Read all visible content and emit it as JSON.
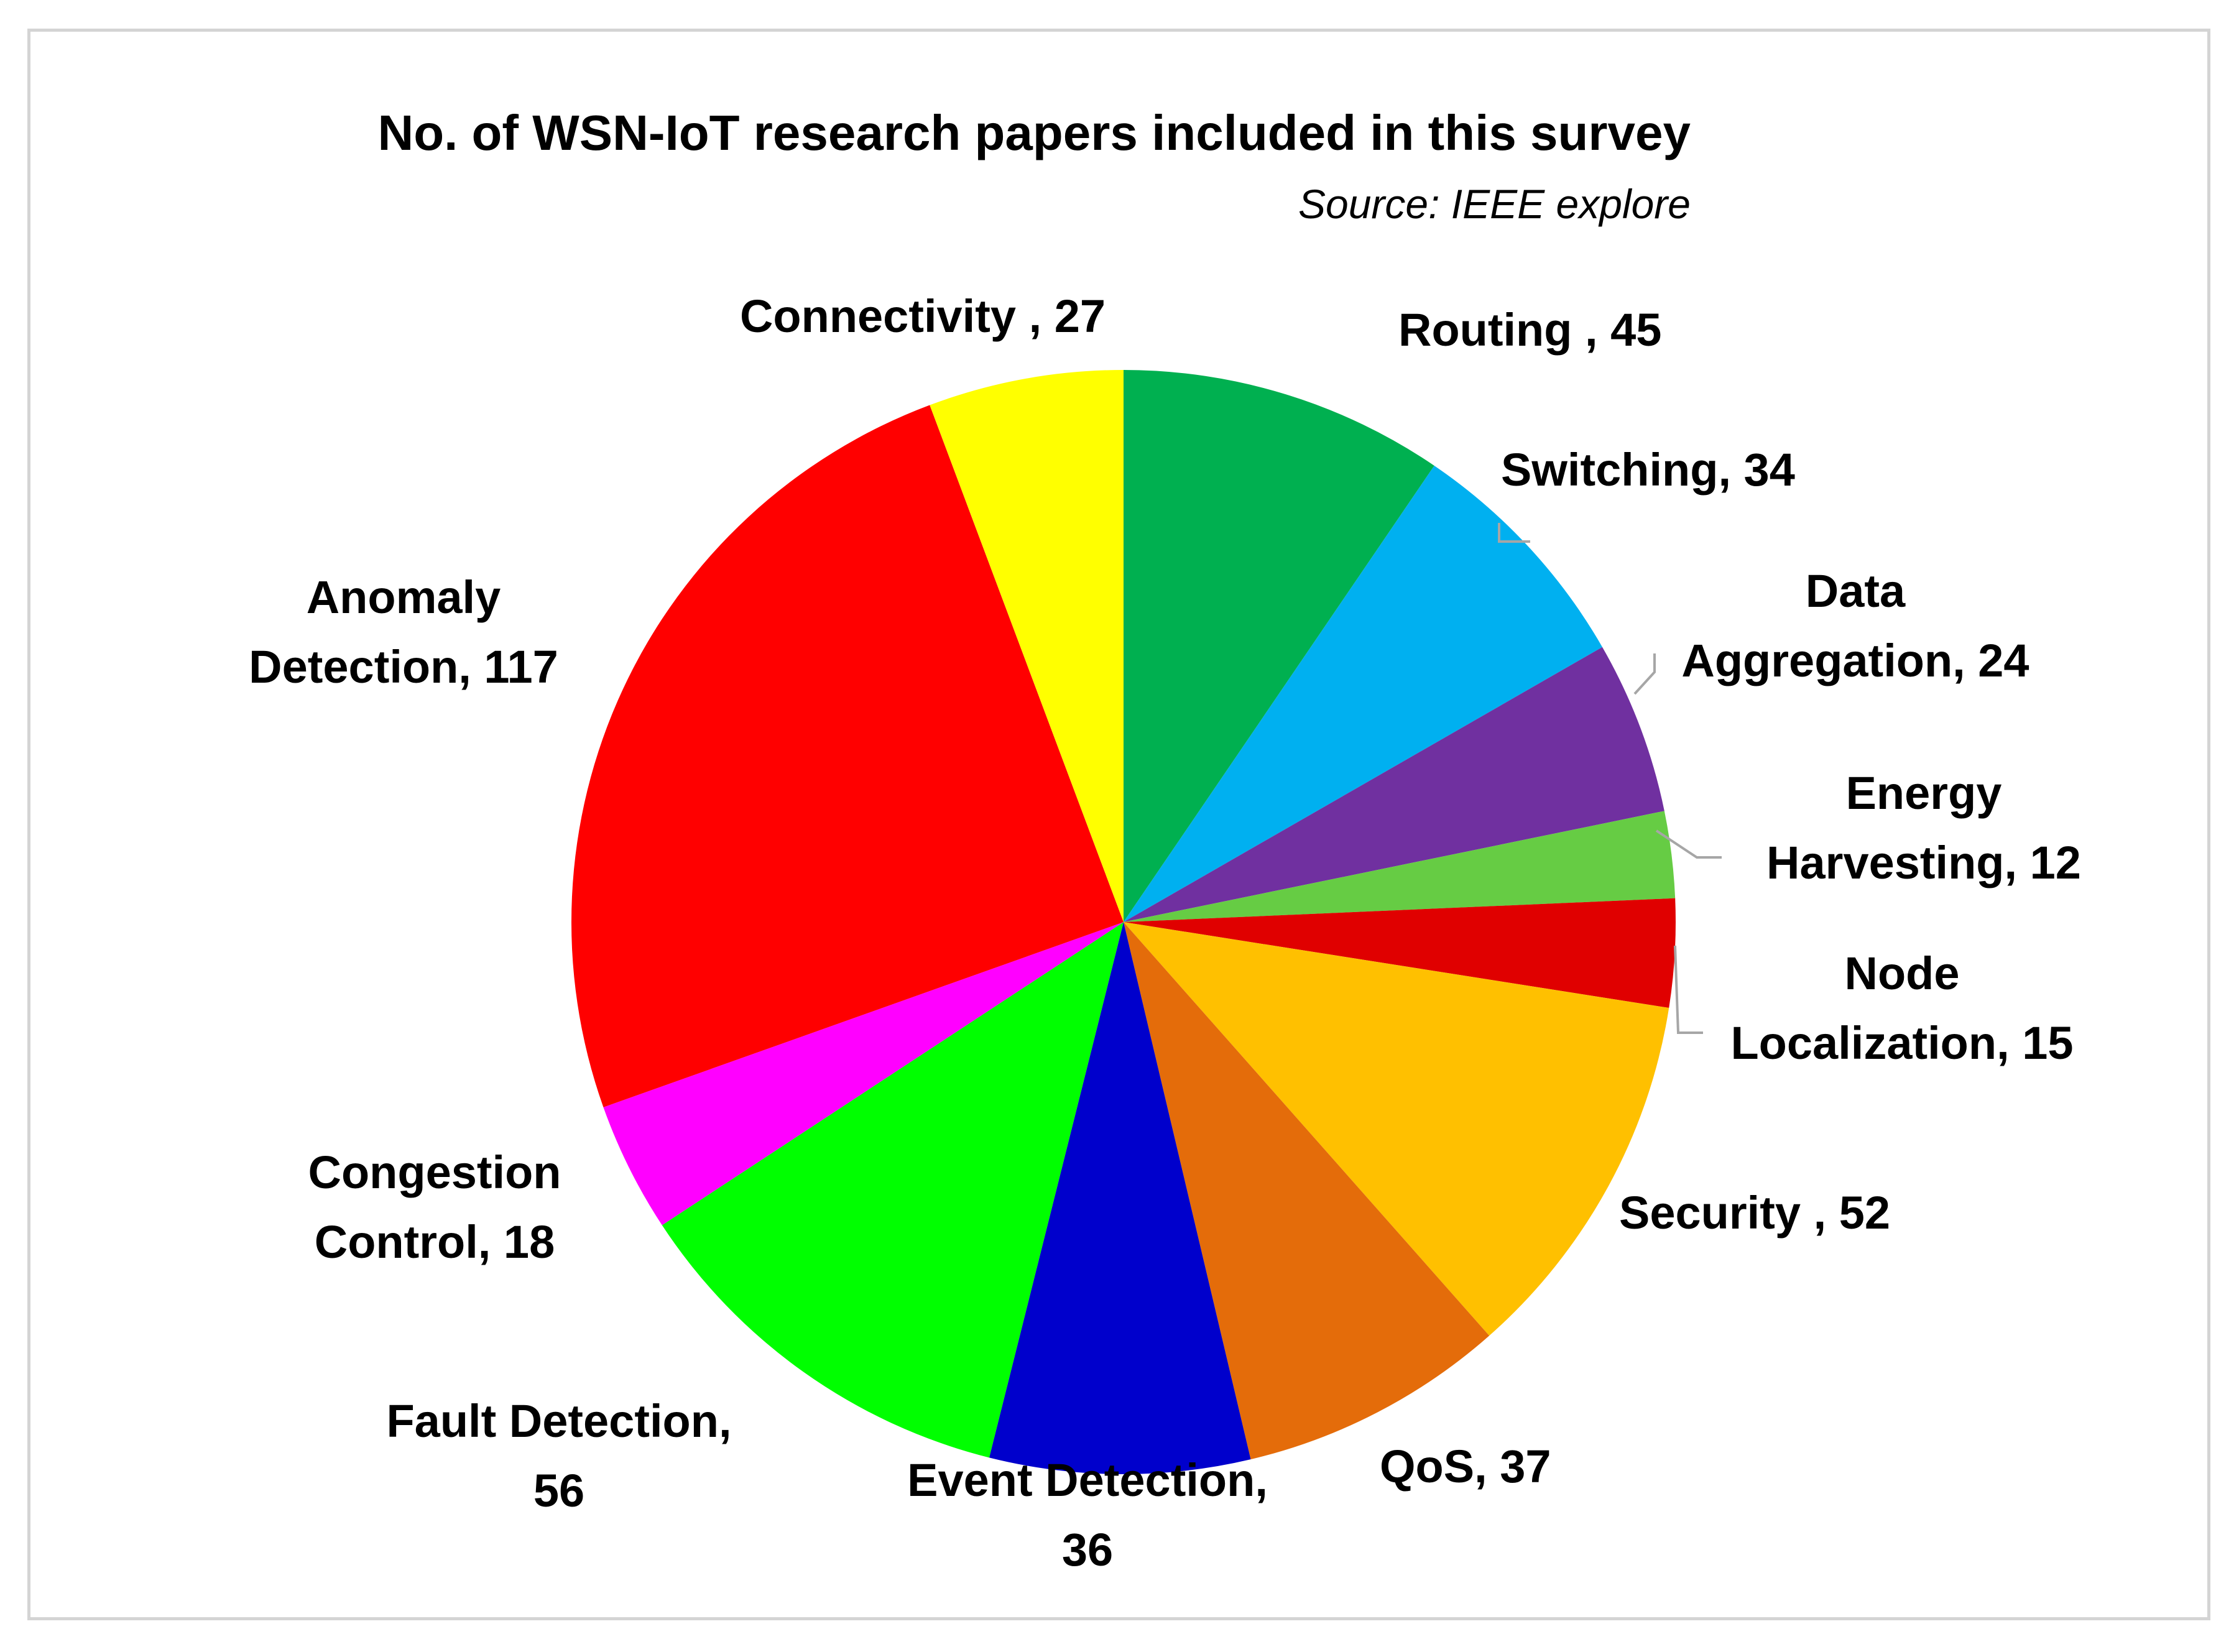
{
  "chart_data": {
    "type": "pie",
    "title": "No. of WSN-IoT research papers included in this survey",
    "subtitle": "Source: IEEE explore",
    "slices": [
      {
        "label": "Routing",
        "label_lines": [
          "Routing , 45"
        ],
        "value": 45,
        "color": "#00b050"
      },
      {
        "label": "Switching",
        "label_lines": [
          "Switching, 34"
        ],
        "value": 34,
        "color": "#00b0f0"
      },
      {
        "label": "Data Aggregation",
        "label_lines": [
          "Data",
          "Aggregation, 24"
        ],
        "value": 24,
        "color": "#7030a0"
      },
      {
        "label": "Energy Harvesting",
        "label_lines": [
          "Energy",
          "Harvesting, 12"
        ],
        "value": 12,
        "color": "#66cc44"
      },
      {
        "label": "Node Localization",
        "label_lines": [
          "Node",
          "Localization, 15"
        ],
        "value": 15,
        "color": "#e00000"
      },
      {
        "label": "Security",
        "label_lines": [
          "Security , 52"
        ],
        "value": 52,
        "color": "#ffc000"
      },
      {
        "label": "QoS",
        "label_lines": [
          "QoS, 37"
        ],
        "value": 37,
        "color": "#e46c0a"
      },
      {
        "label": "Event Detection",
        "label_lines": [
          "Event Detection,",
          "36"
        ],
        "value": 36,
        "color": "#0000cc"
      },
      {
        "label": "Fault Detection",
        "label_lines": [
          "Fault Detection,",
          "56"
        ],
        "value": 56,
        "color": "#00ff00"
      },
      {
        "label": "Congestion Control",
        "label_lines": [
          "Congestion",
          "Control, 18"
        ],
        "value": 18,
        "color": "#ff00ff"
      },
      {
        "label": "Anomaly Detection",
        "label_lines": [
          "Anomaly",
          "Detection, 117"
        ],
        "value": 117,
        "color": "#ff0000"
      },
      {
        "label": "Connectivity",
        "label_lines": [
          "Connectivity , 27"
        ],
        "value": 27,
        "color": "#ffff00"
      }
    ]
  }
}
